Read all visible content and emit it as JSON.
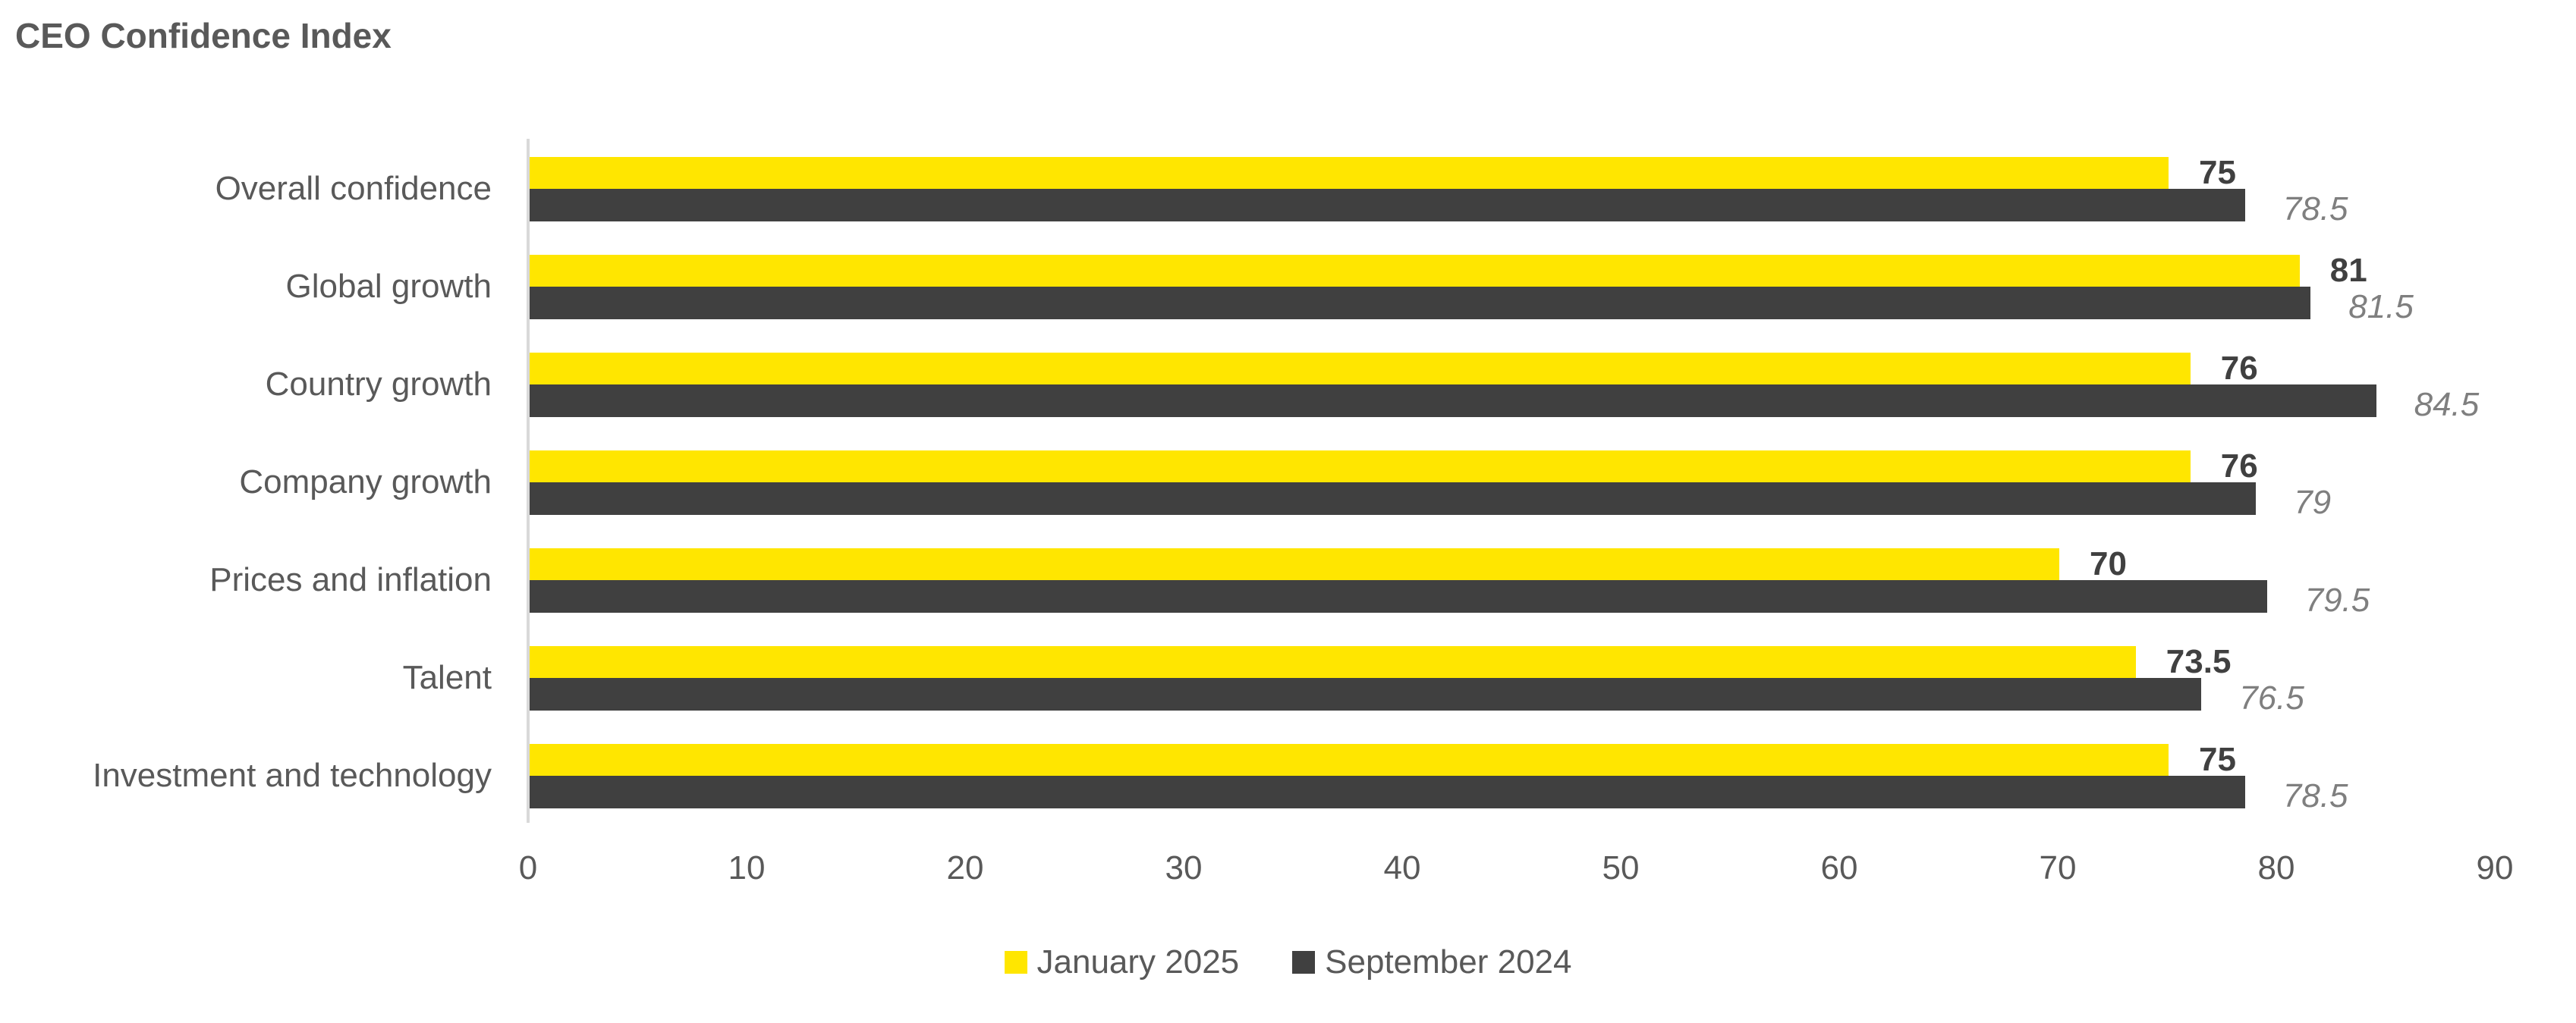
{
  "colors": {
    "january": "#FFE600",
    "september": "#404040",
    "text": "#595959",
    "jan_value_label": "#404040",
    "sep_value_label": "#7F7F7F",
    "axis_line": "#D9D9D9",
    "background": "#FFFFFF"
  },
  "chart_data": {
    "type": "bar",
    "orientation": "horizontal",
    "title": "CEO Confidence Index",
    "categories": [
      "Overall confidence",
      "Global growth",
      "Country growth",
      "Company growth",
      "Prices and inflation",
      "Talent",
      "Investment and technology"
    ],
    "series": [
      {
        "name": "January 2025",
        "color": "#FFE600",
        "values": [
          75,
          81,
          76,
          76,
          70,
          73.5,
          75
        ]
      },
      {
        "name": "September 2024",
        "color": "#404040",
        "values": [
          78.5,
          81.5,
          84.5,
          79,
          79.5,
          76.5,
          78.5
        ]
      }
    ],
    "data_labels": {
      "january": [
        "75",
        "81",
        "76",
        "76",
        "70",
        "73.5",
        "75"
      ],
      "september": [
        "78.5",
        "81.5",
        "84.5",
        "79",
        "79.5",
        "76.5",
        "78.5"
      ]
    },
    "x_ticks": [
      "0",
      "10",
      "20",
      "30",
      "40",
      "50",
      "60",
      "70",
      "80",
      "90"
    ],
    "xlim": [
      0,
      90
    ],
    "grid": false,
    "legend_position": "bottom-center"
  }
}
